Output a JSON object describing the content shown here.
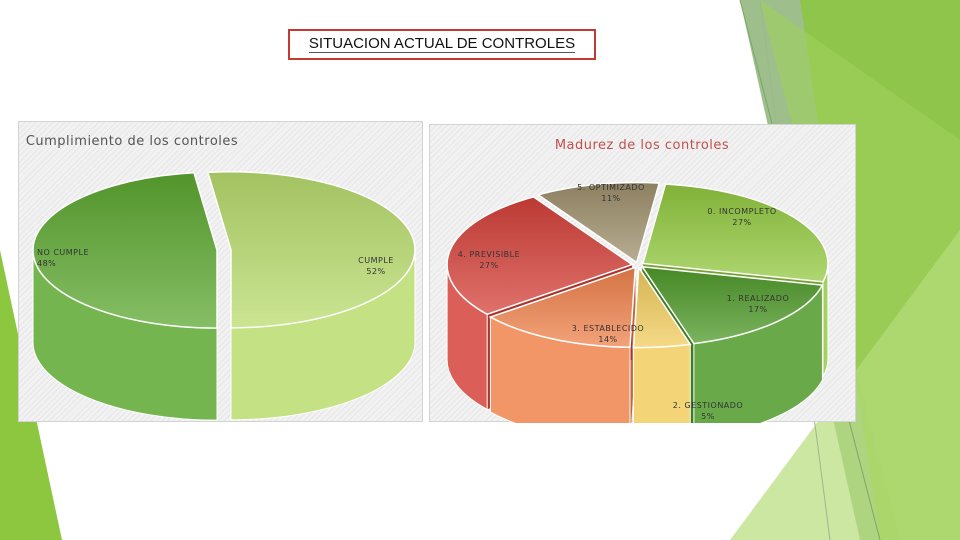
{
  "slide": {
    "title": "SITUACION ACTUAL DE CONTROLES",
    "accent_colors": [
      "#8dc63f",
      "#6aa84f",
      "#4e8a2c"
    ]
  },
  "chart_data": [
    {
      "type": "pie",
      "style": "3d",
      "title": "Cumplimiento de los controles",
      "title_color": "#555555",
      "slices": [
        {
          "label": "NO CUMPLE",
          "value_label": "48%",
          "value": 48,
          "color": "#5da831"
        },
        {
          "label": "CUMPLE",
          "value_label": "52%",
          "value": 52,
          "color": "#b9dc6e"
        }
      ]
    },
    {
      "type": "pie",
      "style": "3d",
      "title": "Madurez de los controles",
      "title_color": "#c0504d",
      "slices": [
        {
          "label": "0. INCOMPLETO",
          "value_label": "27%",
          "value": 27,
          "color": "#93c940"
        },
        {
          "label": "1. REALIZADO",
          "value_label": "17%",
          "value": 17,
          "color": "#4f9a2a"
        },
        {
          "label": "2. GESTIONADO",
          "value_label": "5%",
          "value": 5,
          "color": "#f1cc5e"
        },
        {
          "label": "3. ESTABLECIDO",
          "value_label": "14%",
          "value": 14,
          "color": "#f0834d"
        },
        {
          "label": "4. PREVISIBLE",
          "value_label": "27%",
          "value": 27,
          "color": "#d5413a"
        },
        {
          "label": "5. OPTIMIZADO",
          "value_label": "11%",
          "value": 11,
          "color": "#a0916e"
        }
      ]
    }
  ]
}
